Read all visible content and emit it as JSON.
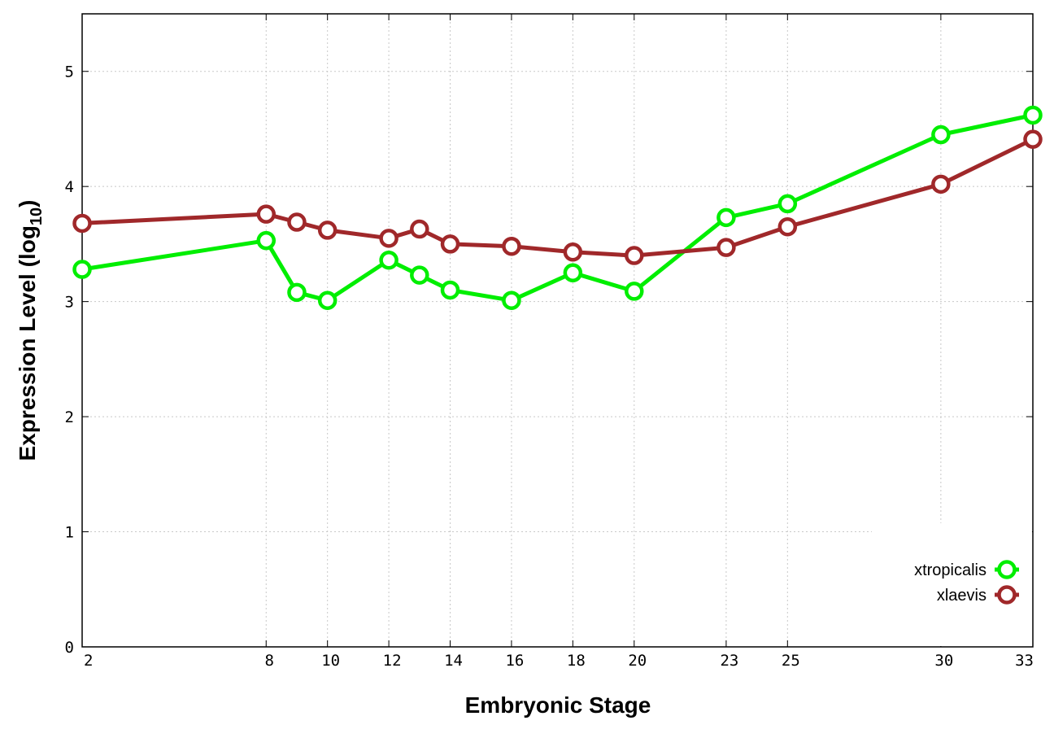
{
  "chart_data": {
    "type": "line",
    "xlabel": "Embryonic Stage",
    "ylabel_main": "Expression Level (log",
    "ylabel_sub": "10",
    "ylabel_end": ")",
    "x_ticks": [
      "2",
      "8",
      "10",
      "12",
      "14",
      "16",
      "18",
      "20",
      "23",
      "25",
      "30",
      "33"
    ],
    "x": [
      2,
      8,
      9,
      10,
      12,
      13,
      14,
      16,
      18,
      20,
      23,
      25,
      30,
      33
    ],
    "ylim": [
      0,
      5.5
    ],
    "y_ticks": [
      0,
      1,
      2,
      3,
      4,
      5
    ],
    "grid": true,
    "legend": "bottom-right",
    "series": [
      {
        "name": "xtropicalis",
        "color": "#00ee00",
        "values": [
          3.28,
          3.53,
          3.08,
          3.01,
          3.36,
          3.23,
          3.1,
          3.01,
          3.25,
          3.09,
          3.73,
          3.85,
          4.45,
          4.62
        ]
      },
      {
        "name": "xlaevis",
        "color": "#a0282a",
        "values": [
          3.68,
          3.76,
          3.69,
          3.62,
          3.55,
          3.63,
          3.5,
          3.48,
          3.43,
          3.4,
          3.47,
          3.65,
          4.02,
          4.41
        ]
      }
    ]
  }
}
